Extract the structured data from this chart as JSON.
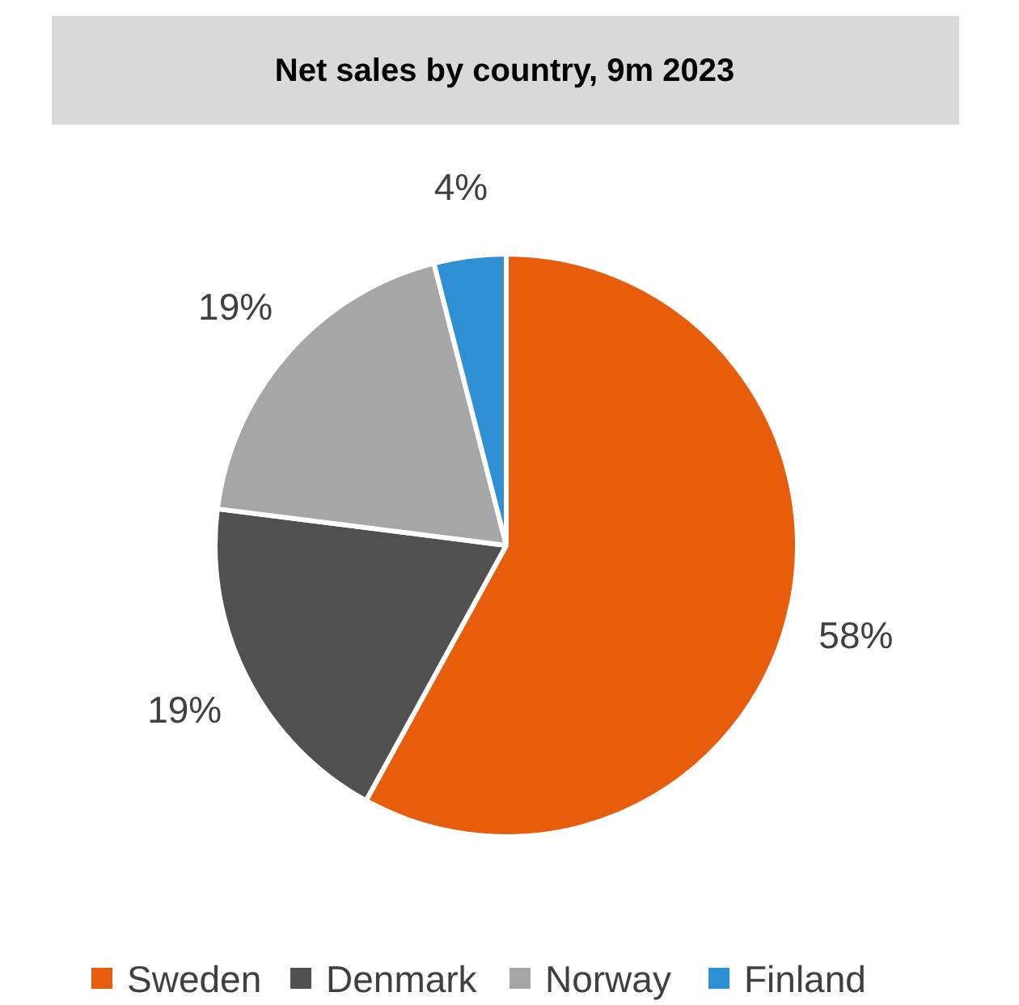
{
  "chart_data": {
    "type": "pie",
    "title": "Net sales by country, 9m 2023",
    "categories": [
      "Sweden",
      "Denmark",
      "Norway",
      "Finland"
    ],
    "values": [
      58,
      19,
      19,
      4
    ],
    "colors": [
      "#e85d0c",
      "#505050",
      "#a6a6a6",
      "#2e8fd2"
    ],
    "value_labels": [
      "58%",
      "19%",
      "19%",
      "4%"
    ],
    "legend": "bottom"
  }
}
